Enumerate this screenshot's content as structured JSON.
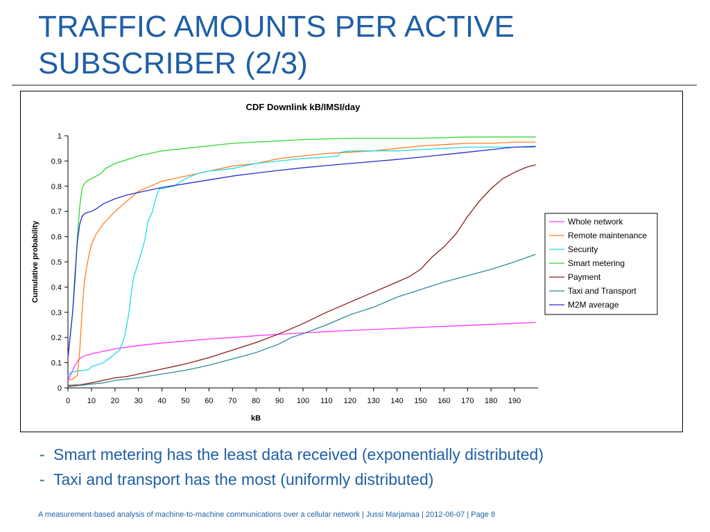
{
  "slide": {
    "title_line1": "TRAFFIC AMOUNTS PER ACTIVE",
    "title_line2": "SUBSCRIBER (2/3)",
    "bullets": [
      {
        "dash": "-",
        "text": "Smart metering has the least data received (exponentially distributed)"
      },
      {
        "dash": "-",
        "text": "Taxi and transport has the most (uniformly distributed)"
      }
    ],
    "footer": "A measurement-based analysis of machine-to-machine communications over a cellular network | Jussi Marjamaa |  2012-06-07  |  Page 8"
  },
  "chart_data": {
    "type": "line",
    "title": "CDF Downlink kB/IMSI/day",
    "xlabel": "kB",
    "ylabel": "Cumulative probability",
    "xlim": [
      0,
      200
    ],
    "ylim": [
      0,
      1
    ],
    "x_ticks": [
      "0",
      "10",
      "20",
      "30",
      "40",
      "50",
      "60",
      "70",
      "80",
      "90",
      "100",
      "110",
      "120",
      "130",
      "140",
      "150",
      "160",
      "170",
      "180",
      "190"
    ],
    "y_ticks": [
      "0",
      "0.1",
      "0.2",
      "0.3",
      "0.4",
      "0.5",
      "0.6",
      "0.7",
      "0.8",
      "0.9",
      "1"
    ],
    "grid": false,
    "legend_position": "right",
    "series": [
      {
        "name": "Whole network",
        "color": "#ff33ff",
        "x": [
          0,
          1,
          2,
          3,
          4,
          5,
          6,
          8,
          10,
          15,
          20,
          30,
          40,
          50,
          60,
          70,
          80,
          90,
          100,
          110,
          120,
          130,
          140,
          150,
          160,
          170,
          180,
          190,
          199
        ],
        "y": [
          0.03,
          0.05,
          0.07,
          0.09,
          0.105,
          0.115,
          0.123,
          0.13,
          0.135,
          0.145,
          0.155,
          0.168,
          0.178,
          0.186,
          0.194,
          0.2,
          0.207,
          0.213,
          0.218,
          0.223,
          0.228,
          0.232,
          0.236,
          0.24,
          0.244,
          0.248,
          0.252,
          0.256,
          0.26
        ]
      },
      {
        "name": "Remote maintenance",
        "color": "#ff7f1e",
        "x": [
          0,
          2,
          4,
          5,
          6,
          7,
          8,
          9,
          10,
          12,
          15,
          20,
          25,
          30,
          35,
          40,
          50,
          60,
          70,
          80,
          90,
          100,
          110,
          120,
          130,
          140,
          150,
          160,
          170,
          180,
          190,
          199
        ],
        "y": [
          0.03,
          0.035,
          0.05,
          0.15,
          0.3,
          0.42,
          0.48,
          0.53,
          0.57,
          0.61,
          0.65,
          0.7,
          0.74,
          0.78,
          0.8,
          0.82,
          0.84,
          0.86,
          0.88,
          0.89,
          0.91,
          0.92,
          0.93,
          0.935,
          0.94,
          0.95,
          0.96,
          0.965,
          0.97,
          0.97,
          0.975,
          0.975
        ]
      },
      {
        "name": "Security",
        "color": "#22d8e6",
        "x": [
          0,
          1,
          3,
          5,
          7,
          9,
          10,
          12,
          15,
          18,
          20,
          22,
          24,
          25,
          26,
          27,
          28,
          30,
          32,
          33,
          34,
          36,
          37,
          38,
          39,
          40,
          45,
          50,
          55,
          60,
          70,
          80,
          90,
          100,
          110,
          115,
          116,
          120,
          130,
          140,
          150,
          160,
          170,
          180,
          190,
          199
        ],
        "y": [
          0.05,
          0.06,
          0.065,
          0.068,
          0.07,
          0.073,
          0.085,
          0.09,
          0.1,
          0.12,
          0.135,
          0.15,
          0.2,
          0.25,
          0.3,
          0.38,
          0.44,
          0.5,
          0.56,
          0.6,
          0.66,
          0.7,
          0.74,
          0.77,
          0.79,
          0.79,
          0.8,
          0.83,
          0.85,
          0.86,
          0.87,
          0.89,
          0.9,
          0.91,
          0.915,
          0.92,
          0.935,
          0.94,
          0.94,
          0.94,
          0.945,
          0.95,
          0.955,
          0.955,
          0.955,
          0.955
        ]
      },
      {
        "name": "Smart metering",
        "color": "#2ed62e",
        "x": [
          0,
          2,
          3,
          4,
          5,
          6,
          7,
          8,
          10,
          12,
          14,
          15,
          16,
          18,
          20,
          25,
          30,
          40,
          50,
          60,
          70,
          80,
          100,
          120,
          150,
          170,
          199
        ],
        "y": [
          0.12,
          0.3,
          0.42,
          0.6,
          0.72,
          0.79,
          0.81,
          0.82,
          0.83,
          0.84,
          0.85,
          0.86,
          0.87,
          0.88,
          0.89,
          0.905,
          0.92,
          0.94,
          0.95,
          0.96,
          0.97,
          0.975,
          0.985,
          0.99,
          0.99,
          0.995,
          0.995
        ]
      },
      {
        "name": "Payment",
        "color": "#8b1a1a",
        "x": [
          0,
          5,
          10,
          15,
          20,
          25,
          30,
          40,
          50,
          60,
          70,
          80,
          90,
          100,
          110,
          120,
          130,
          140,
          145,
          150,
          155,
          160,
          165,
          170,
          175,
          180,
          185,
          190,
          195,
          199
        ],
        "y": [
          0.01,
          0.012,
          0.02,
          0.03,
          0.04,
          0.045,
          0.055,
          0.075,
          0.095,
          0.12,
          0.15,
          0.18,
          0.215,
          0.255,
          0.3,
          0.34,
          0.38,
          0.42,
          0.44,
          0.47,
          0.52,
          0.56,
          0.61,
          0.68,
          0.74,
          0.79,
          0.83,
          0.855,
          0.875,
          0.885
        ]
      },
      {
        "name": "Taxi and Transport",
        "color": "#2a8c98",
        "x": [
          0,
          5,
          10,
          15,
          20,
          25,
          30,
          40,
          50,
          60,
          70,
          80,
          90,
          95,
          100,
          110,
          120,
          130,
          140,
          150,
          160,
          170,
          180,
          190,
          199
        ],
        "y": [
          0.005,
          0.01,
          0.015,
          0.02,
          0.03,
          0.035,
          0.04,
          0.055,
          0.07,
          0.09,
          0.115,
          0.14,
          0.175,
          0.2,
          0.215,
          0.25,
          0.29,
          0.32,
          0.36,
          0.39,
          0.42,
          0.445,
          0.47,
          0.5,
          0.53
        ]
      },
      {
        "name": "M2M average",
        "color": "#2b2bcf",
        "x": [
          0,
          2,
          3,
          4,
          5,
          6,
          7,
          8,
          10,
          12,
          15,
          20,
          25,
          30,
          40,
          50,
          60,
          70,
          80,
          90,
          100,
          110,
          120,
          130,
          140,
          150,
          160,
          170,
          180,
          190,
          199
        ],
        "y": [
          0.12,
          0.3,
          0.45,
          0.58,
          0.65,
          0.68,
          0.69,
          0.695,
          0.7,
          0.71,
          0.73,
          0.75,
          0.765,
          0.775,
          0.795,
          0.81,
          0.825,
          0.84,
          0.852,
          0.863,
          0.873,
          0.882,
          0.89,
          0.898,
          0.906,
          0.915,
          0.925,
          0.935,
          0.945,
          0.955,
          0.958
        ]
      }
    ]
  }
}
